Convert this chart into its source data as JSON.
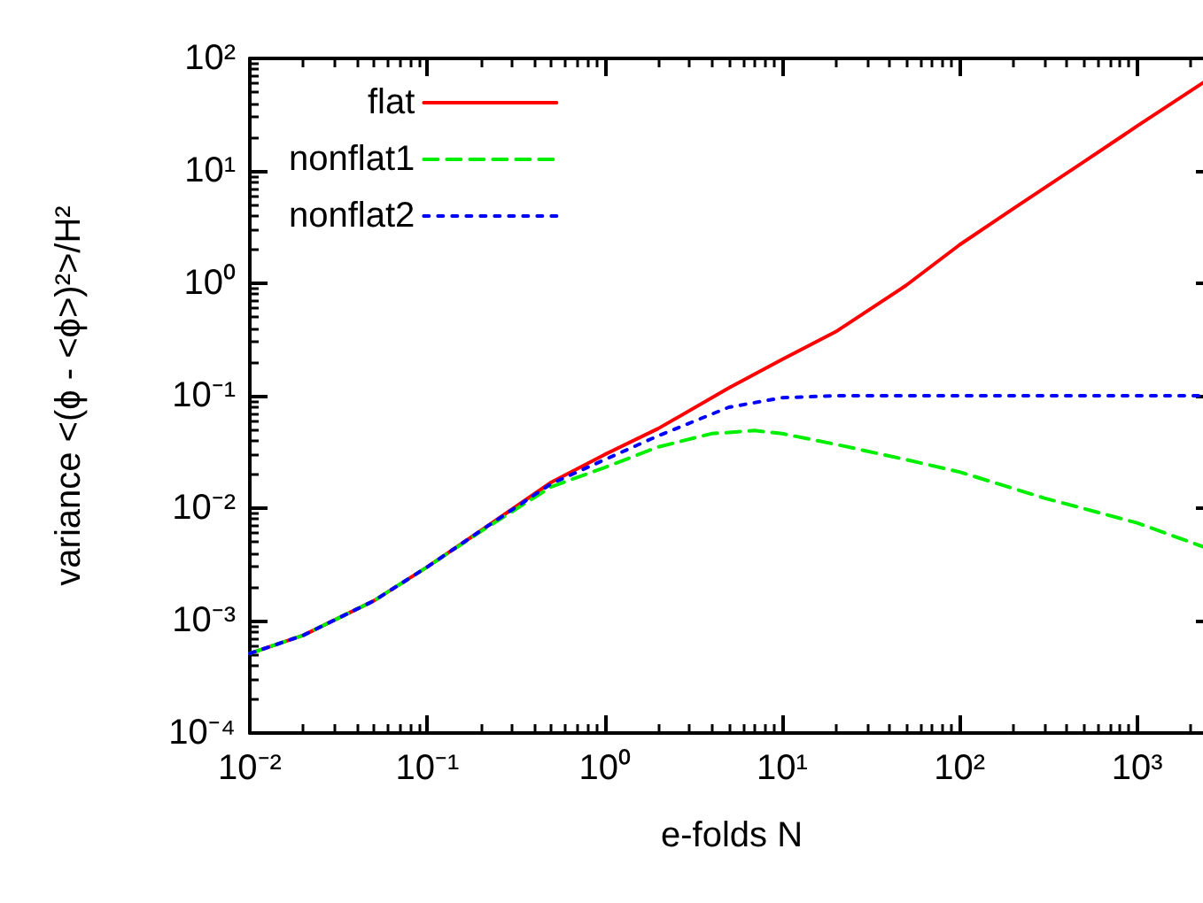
{
  "chart_data": {
    "type": "line",
    "xlabel": "e-folds N",
    "ylabel": "variance <(ϕ - <ϕ>)²>/H²",
    "log": "xy",
    "grid": false,
    "legend": "top left",
    "marker": "none",
    "xlim": [
      0.01,
      2700
    ],
    "ylim": [
      0.0001,
      100
    ],
    "xticks": [
      {
        "value": 0.01,
        "label": "10⁻²"
      },
      {
        "value": 0.1,
        "label": "10⁻¹"
      },
      {
        "value": 1,
        "label": "10⁰"
      },
      {
        "value": 10,
        "label": "10¹"
      },
      {
        "value": 100,
        "label": "10²"
      },
      {
        "value": 1000,
        "label": "10³"
      }
    ],
    "yticks": [
      {
        "value": 0.0001,
        "label": "10⁻⁴"
      },
      {
        "value": 0.001,
        "label": "10⁻³"
      },
      {
        "value": 0.01,
        "label": "10⁻²"
      },
      {
        "value": 0.1,
        "label": "10⁻¹"
      },
      {
        "value": 1,
        "label": "10⁰"
      },
      {
        "value": 10,
        "label": "10¹"
      },
      {
        "value": 100,
        "label": "10²"
      }
    ],
    "series": [
      {
        "name": "flat",
        "color": "#ff0000",
        "line_style": "solid",
        "x": [
          0.01,
          0.02,
          0.05,
          0.1,
          0.2,
          0.5,
          1,
          2,
          5,
          10,
          20,
          50,
          100,
          200,
          500,
          1000,
          2700
        ],
        "values": [
          0.00051,
          0.00074,
          0.0015,
          0.003,
          0.0063,
          0.017,
          0.03,
          0.051,
          0.117,
          0.21,
          0.37,
          0.96,
          2.2,
          4.6,
          12,
          25,
          70
        ]
      },
      {
        "name": "nonflat1",
        "color": "#00ee00",
        "line_style": "dashed",
        "x": [
          0.01,
          0.02,
          0.05,
          0.1,
          0.2,
          0.5,
          1,
          2,
          4,
          7,
          10,
          20,
          50,
          100,
          300,
          1000,
          2700
        ],
        "values": [
          0.00051,
          0.00074,
          0.0015,
          0.003,
          0.0062,
          0.0155,
          0.023,
          0.035,
          0.046,
          0.049,
          0.046,
          0.037,
          0.027,
          0.021,
          0.0123,
          0.0074,
          0.0042
        ]
      },
      {
        "name": "nonflat2",
        "color": "#0000ff",
        "line_style": "dotted",
        "x": [
          0.01,
          0.02,
          0.05,
          0.1,
          0.2,
          0.5,
          1,
          2,
          5,
          10,
          20,
          50,
          100,
          1000,
          2700
        ],
        "values": [
          0.00051,
          0.00074,
          0.0015,
          0.003,
          0.0063,
          0.0165,
          0.027,
          0.044,
          0.079,
          0.096,
          0.1,
          0.1,
          0.1,
          0.1,
          0.1
        ]
      }
    ]
  }
}
